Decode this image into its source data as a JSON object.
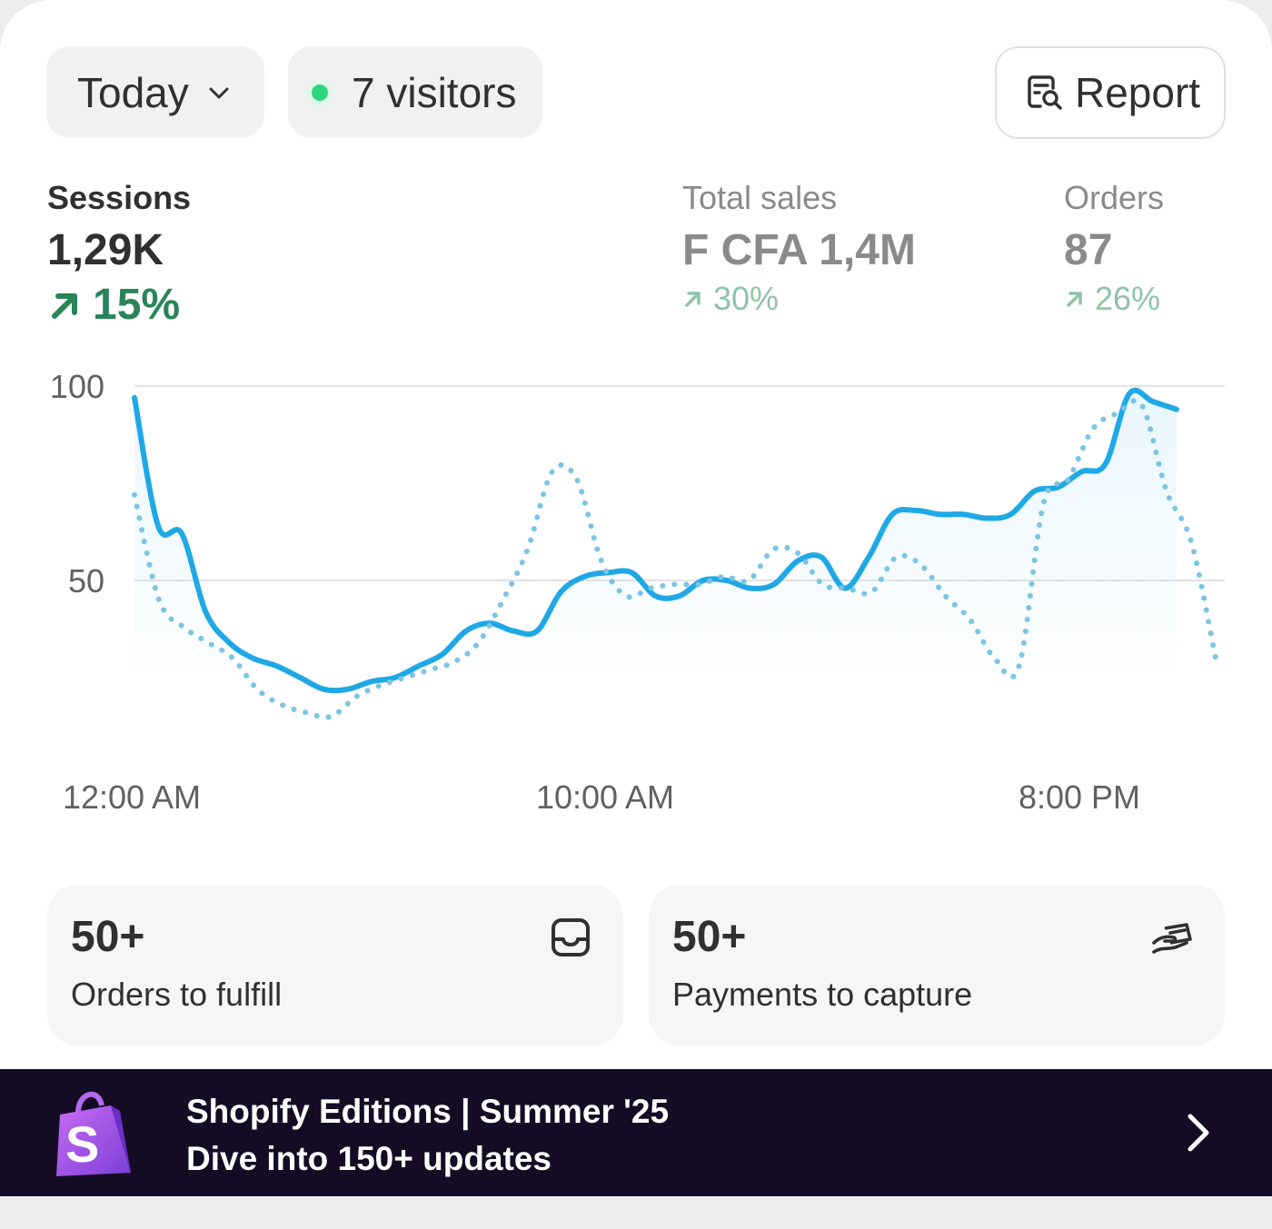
{
  "filters": {
    "date_range": "Today",
    "live_visitors": "7 visitors",
    "report_label": "Report"
  },
  "metrics": {
    "sessions": {
      "label": "Sessions",
      "value": "1,29K",
      "change": "15%"
    },
    "total_sales": {
      "label": "Total sales",
      "value": "F CFA 1,4M",
      "change": "30%"
    },
    "orders": {
      "label": "Orders",
      "value": "87",
      "change": "26%"
    }
  },
  "chart_data": {
    "type": "line",
    "y_ticks": [
      "100",
      "50"
    ],
    "x_ticks": [
      "12:00 AM",
      "10:00 AM",
      "8:00 PM"
    ],
    "ylim": [
      0,
      100
    ],
    "grid": true,
    "x": [
      0,
      0.5,
      1,
      1.5,
      2,
      2.5,
      3,
      3.5,
      4,
      4.5,
      5,
      5.5,
      6,
      6.5,
      7,
      7.5,
      8,
      8.5,
      9,
      9.5,
      10,
      10.5,
      11,
      11.5,
      12,
      12.5,
      13,
      13.5,
      14,
      14.5,
      15,
      15.5,
      16,
      16.5,
      17,
      17.5,
      18,
      18.5,
      19,
      19.5,
      20,
      20.5,
      21,
      21.5,
      22
    ],
    "series": [
      {
        "style": "solid",
        "color": "#1fa8e6",
        "values": [
          97,
          64,
          62,
          42,
          34,
          30,
          28,
          25,
          22,
          22,
          24,
          25,
          28,
          31,
          37,
          39,
          37,
          37,
          47,
          51,
          52,
          52,
          46,
          46,
          50,
          50,
          48,
          49,
          55,
          56,
          48,
          56,
          67,
          68,
          67,
          67,
          66,
          67,
          73,
          74,
          78,
          80,
          98,
          96,
          94
        ]
      },
      {
        "style": "dotted",
        "color": "#7cc4e4",
        "values": [
          72,
          45,
          38,
          34,
          30,
          22,
          18,
          16,
          15,
          20,
          23,
          25,
          27,
          29,
          34,
          45,
          58,
          78,
          76,
          55,
          46,
          48,
          49,
          49,
          51,
          50,
          58,
          57,
          49,
          48,
          47,
          56,
          54,
          46,
          40,
          30,
          28,
          70,
          76,
          89,
          93,
          95,
          73,
          60,
          30
        ]
      }
    ]
  },
  "tiles": [
    {
      "count": "50+",
      "label": "Orders to fulfill",
      "icon": "inbox-icon"
    },
    {
      "count": "50+",
      "label": "Payments to capture",
      "icon": "cash-hand-icon"
    }
  ],
  "banner": {
    "title": "Shopify Editions | Summer '25",
    "subtitle": "Dive into 150+ updates",
    "icon": "shopify-bag-icon"
  },
  "colors": {
    "accent_line": "#1fa8e6",
    "positive": "#29845a",
    "banner_bg": "#140c24"
  }
}
